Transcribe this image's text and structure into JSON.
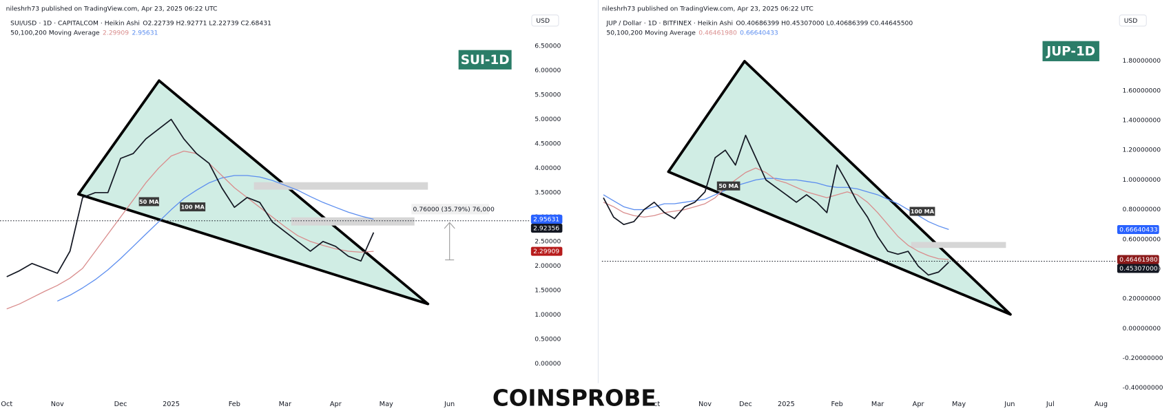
{
  "chart_data": [
    {
      "type": "line",
      "header": "nileshrh73 published on TradingView.com, Apr 23, 2025 06:22 UTC",
      "symbol_info": "· 1D · CAPITALCOM · Heikin Ashi",
      "ohlc": "O2.22739 H2.92771 L2.22739 C2.68431",
      "indicator": "50,100,200 Moving Average",
      "indicator_values": [
        2.29909,
        2.95631
      ],
      "currency": "USD",
      "badge": "SUI-1D",
      "annotation": "0.76000 (35.79%) 76,000",
      "categories": [
        "Oct",
        null,
        null,
        null,
        "Nov",
        null,
        null,
        null,
        null,
        "Dec",
        null,
        null,
        null,
        "2025",
        null,
        null,
        null,
        null,
        "Feb",
        null,
        null,
        null,
        "Mar",
        null,
        null,
        null,
        "Apr",
        null,
        null,
        null,
        "May",
        null,
        null,
        null,
        null,
        "Jun"
      ],
      "series": [
        {
          "name": "SUI/USD",
          "color": "#131722",
          "values": [
            1.78,
            1.9,
            2.05,
            1.95,
            1.85,
            2.3,
            3.4,
            3.5,
            3.5,
            4.2,
            4.3,
            4.6,
            4.8,
            5.0,
            4.6,
            4.3,
            4.1,
            3.6,
            3.2,
            3.4,
            3.3,
            2.9,
            2.7,
            2.5,
            2.3,
            2.5,
            2.4,
            2.2,
            2.1,
            2.68431,
            null,
            null,
            null,
            null,
            null,
            null
          ]
        },
        {
          "name": "50 MA",
          "color": "#d98c8c",
          "values": [
            1.12,
            1.22,
            1.35,
            1.48,
            1.6,
            1.75,
            1.95,
            2.3,
            2.65,
            3.0,
            3.35,
            3.7,
            4.0,
            4.25,
            4.35,
            4.3,
            4.1,
            3.85,
            3.6,
            3.4,
            3.2,
            3.0,
            2.8,
            2.62,
            2.5,
            2.42,
            2.35,
            2.3,
            2.28,
            2.29909,
            null,
            null,
            null,
            null,
            null,
            null
          ]
        },
        {
          "name": "100 MA",
          "color": "#5b8def",
          "values": [
            null,
            null,
            null,
            null,
            1.28,
            1.4,
            1.55,
            1.72,
            1.92,
            2.15,
            2.4,
            2.65,
            2.9,
            3.15,
            3.38,
            3.55,
            3.7,
            3.8,
            3.85,
            3.85,
            3.82,
            3.75,
            3.65,
            3.55,
            3.42,
            3.3,
            3.2,
            3.1,
            3.02,
            2.95631,
            null,
            null,
            null,
            null,
            null,
            null
          ]
        }
      ],
      "ylim": [
        -1.01,
        7.06
      ],
      "yticks": [
        {
          "value": 0,
          "label": "0.00000"
        },
        {
          "value": 0.5,
          "label": "0.50000"
        },
        {
          "value": 1,
          "label": "1.00000"
        },
        {
          "value": 1.5,
          "label": "1.50000"
        },
        {
          "value": 2,
          "label": "2.00000"
        },
        {
          "value": 2.5,
          "label": "2.50000"
        },
        {
          "value": 3,
          "label": "3.00000"
        },
        {
          "value": 3.5,
          "label": "3.50000"
        },
        {
          "value": 4,
          "label": "4.00000"
        },
        {
          "value": 4.5,
          "label": "4.50000"
        },
        {
          "value": 5,
          "label": "5.00000"
        },
        {
          "value": 5.5,
          "label": "5.50000"
        },
        {
          "value": 6,
          "label": "6.00000"
        },
        {
          "value": 6.5,
          "label": "6.50000"
        }
      ],
      "grid": false,
      "price_tags": [
        {
          "value": 2.95631,
          "label": "2.95631",
          "color": "#2962ff"
        },
        {
          "value": 2.92356,
          "label": "2.92356",
          "color": "#131722",
          "style": "dotted"
        },
        {
          "value": 2.29909,
          "label": "2.29909",
          "color": "#b71c1c"
        }
      ]
    },
    {
      "type": "line",
      "header": "nileshrh73 published on TradingView.com, Apr 23, 2025 06:22 UTC",
      "symbol_info": "· 1D · BITFINEX · Heikin Ashi",
      "ohlc": "O0.40686399 H0.45307000 L0.40686399 C0.44645500",
      "indicator": "50,100,200 Moving Average",
      "indicator_values": [
        {
          "value": 0.4646198,
          "label": "0.46461980"
        },
        {
          "value": 0.66640433,
          "label": "0.66640433"
        }
      ],
      "currency": "USD",
      "badge": "JUP-1D",
      "categories": [
        null,
        null,
        null,
        null,
        null,
        "Oct",
        null,
        null,
        null,
        null,
        "Nov",
        null,
        null,
        null,
        "Dec",
        null,
        null,
        null,
        "2025",
        null,
        null,
        null,
        null,
        "Feb",
        null,
        null,
        null,
        "Mar",
        null,
        null,
        null,
        "Apr",
        null,
        null,
        null,
        "May",
        null,
        null,
        null,
        null,
        "Jun",
        null,
        null,
        null,
        "Jul",
        null,
        null,
        null,
        null,
        "Aug",
        null
      ],
      "series": [
        {
          "name": "JUP / Dollar",
          "color": "#131722",
          "values": [
            0.88,
            0.75,
            0.7,
            0.72,
            0.8,
            0.85,
            0.78,
            0.74,
            0.82,
            0.85,
            0.92,
            1.15,
            1.2,
            1.1,
            1.3,
            1.15,
            1.0,
            0.95,
            0.9,
            0.85,
            0.9,
            0.85,
            0.78,
            1.1,
            0.98,
            0.85,
            0.75,
            0.62,
            0.52,
            0.5,
            0.52,
            0.42,
            0.36,
            0.38,
            0.446455,
            null,
            null,
            null,
            null,
            null,
            null,
            null,
            null,
            null,
            null,
            null,
            null,
            null,
            null,
            null,
            null
          ]
        },
        {
          "name": "50 MA",
          "color": "#d98c8c",
          "values": [
            0.85,
            0.82,
            0.78,
            0.76,
            0.75,
            0.76,
            0.78,
            0.79,
            0.8,
            0.82,
            0.84,
            0.88,
            0.95,
            1.0,
            1.05,
            1.08,
            1.05,
            1.0,
            0.98,
            0.95,
            0.92,
            0.9,
            0.88,
            0.9,
            0.92,
            0.9,
            0.85,
            0.78,
            0.7,
            0.62,
            0.56,
            0.52,
            0.49,
            0.47,
            0.4646198,
            null,
            null,
            null,
            null,
            null,
            null,
            null,
            null,
            null,
            null,
            null,
            null,
            null,
            null,
            null,
            null
          ]
        },
        {
          "name": "100 MA",
          "color": "#5b8def",
          "values": [
            0.9,
            0.86,
            0.82,
            0.8,
            0.8,
            0.82,
            0.84,
            0.84,
            0.85,
            0.86,
            0.87,
            0.9,
            0.93,
            0.96,
            0.98,
            1.0,
            1.01,
            1.01,
            1.0,
            1.0,
            0.99,
            0.98,
            0.96,
            0.95,
            0.95,
            0.94,
            0.92,
            0.9,
            0.87,
            0.84,
            0.8,
            0.76,
            0.72,
            0.69,
            0.66640433,
            null,
            null,
            null,
            null,
            null,
            null,
            null,
            null,
            null,
            null,
            null,
            null,
            null,
            null,
            null,
            null
          ]
        }
      ],
      "ylim": [
        -0.568,
        2.085
      ],
      "yticks": [
        {
          "value": -0.4,
          "label": "-0.40000000"
        },
        {
          "value": -0.2,
          "label": "-0.20000000"
        },
        {
          "value": 0,
          "label": "0.00000000"
        },
        {
          "value": 0.2,
          "label": "0.20000000"
        },
        {
          "value": 0.4,
          "label": "0.40000000"
        },
        {
          "value": 0.6,
          "label": "0.60000000"
        },
        {
          "value": 0.8,
          "label": "0.80000000"
        },
        {
          "value": 1,
          "label": "1.00000000"
        },
        {
          "value": 1.2,
          "label": "1.20000000"
        },
        {
          "value": 1.4,
          "label": "1.40000000"
        },
        {
          "value": 1.6,
          "label": "1.60000000"
        },
        {
          "value": 1.8,
          "label": "1.80000000"
        }
      ],
      "grid": false,
      "price_tags": [
        {
          "value": 0.66640433,
          "label": "0.66640433",
          "color": "#2962ff"
        },
        {
          "value": 0.4646198,
          "label": "0.46461980",
          "color": "#8b1a1a"
        },
        {
          "value": 0.45307,
          "label": "0.45307000",
          "color": "#131722",
          "style": "dotted"
        }
      ]
    }
  ],
  "watermark": "COINSPROBE"
}
